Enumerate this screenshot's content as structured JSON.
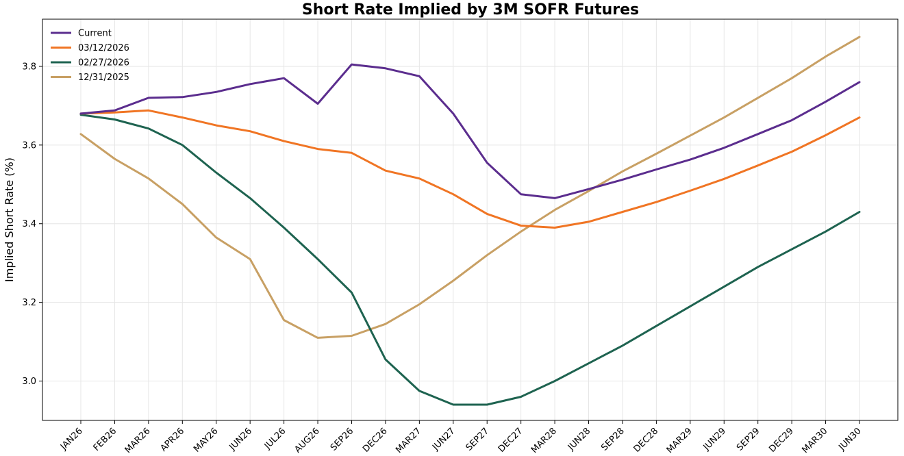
{
  "chart_data": {
    "type": "line",
    "title": "Short Rate Implied by 3M SOFR Futures",
    "xlabel": "",
    "ylabel": "Implied Short Rate (%)",
    "ylim": [
      2.9,
      3.92
    ],
    "yticks": [
      3.0,
      3.2,
      3.4,
      3.6,
      3.8
    ],
    "grid": true,
    "legend_position": "top-left",
    "categories": [
      "JAN26",
      "FEB26",
      "MAR26",
      "APR26",
      "MAY26",
      "JUN26",
      "JUL26",
      "AUG26",
      "SEP26",
      "DEC26",
      "MAR27",
      "JUN27",
      "SEP27",
      "DEC27",
      "MAR28",
      "JUN28",
      "SEP28",
      "DEC28",
      "MAR29",
      "JUN29",
      "SEP29",
      "DEC29",
      "MAR30",
      "JUN30"
    ],
    "series": [
      {
        "name": "Current",
        "color": "#5b2d8e",
        "values": [
          3.68,
          3.688,
          3.72,
          3.722,
          3.735,
          3.755,
          3.77,
          3.705,
          3.805,
          3.795,
          3.775,
          3.68,
          3.555,
          3.475,
          3.465,
          3.488,
          3.512,
          3.538,
          3.563,
          3.593,
          3.628,
          3.663,
          3.71,
          3.76
        ]
      },
      {
        "name": "03/12/2026",
        "color": "#f07524",
        "values": [
          3.68,
          3.683,
          3.688,
          3.67,
          3.65,
          3.635,
          3.61,
          3.59,
          3.58,
          3.535,
          3.515,
          3.475,
          3.425,
          3.395,
          3.39,
          3.405,
          3.43,
          3.455,
          3.484,
          3.514,
          3.548,
          3.583,
          3.625,
          3.67
        ]
      },
      {
        "name": "02/27/2026",
        "color": "#1e6350",
        "values": [
          3.677,
          3.665,
          3.642,
          3.6,
          3.53,
          3.465,
          3.39,
          3.31,
          3.225,
          3.055,
          2.975,
          2.94,
          2.94,
          2.96,
          3.0,
          3.045,
          3.09,
          3.14,
          3.19,
          3.24,
          3.29,
          3.335,
          3.38,
          3.43
        ]
      },
      {
        "name": "12/31/2025",
        "color": "#c8a064",
        "values": [
          3.628,
          3.565,
          3.515,
          3.45,
          3.365,
          3.31,
          3.155,
          3.11,
          3.115,
          3.145,
          3.195,
          3.255,
          3.32,
          3.38,
          3.435,
          3.483,
          3.533,
          3.578,
          3.624,
          3.67,
          3.72,
          3.77,
          3.825,
          3.875
        ]
      }
    ]
  }
}
